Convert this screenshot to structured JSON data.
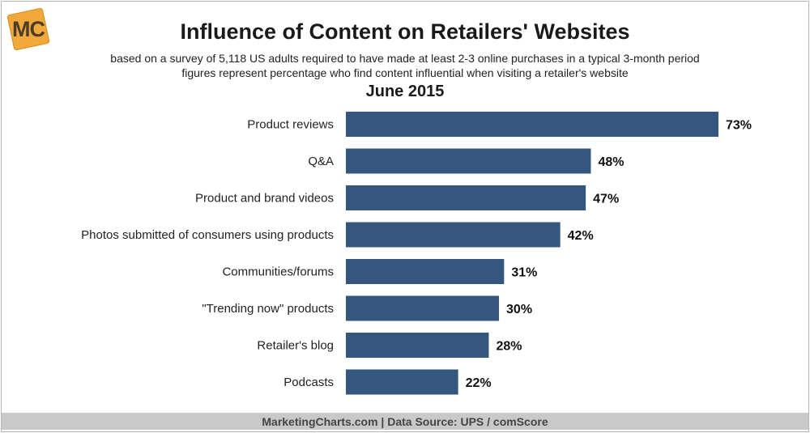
{
  "logo": {
    "text": "MC",
    "colors": {
      "box": "#f2a93b",
      "box_edge": "#d98a1c"
    }
  },
  "header": {
    "title": "Influence of Content on Retailers' Websites",
    "subtitle_line1": "based on a survey of 5,118 US adults required to have made at least 2-3 online purchases in a typical 3-month period",
    "subtitle_line2": "figures represent percentage who find content influential when visiting a retailer's website",
    "period": "June 2015"
  },
  "footer": {
    "text": "MarketingCharts.com | Data Source: UPS / comScore"
  },
  "colors": {
    "bar": "#34567f",
    "value_label": "#111111",
    "category_label": "#222222"
  },
  "chart_data": {
    "type": "bar",
    "orientation": "horizontal",
    "categories": [
      "Product reviews",
      "Q&A",
      "Product and brand videos",
      "Photos submitted of consumers using products",
      "Communities/forums",
      "\"Trending now\" products",
      "Retailer's blog",
      "Podcasts"
    ],
    "values": [
      73,
      48,
      47,
      42,
      31,
      30,
      28,
      22
    ],
    "value_labels": [
      "73%",
      "48%",
      "47%",
      "42%",
      "31%",
      "30%",
      "28%",
      "22%"
    ],
    "unit": "%",
    "xlim": [
      0,
      73
    ],
    "grid": false,
    "legend": "none"
  }
}
